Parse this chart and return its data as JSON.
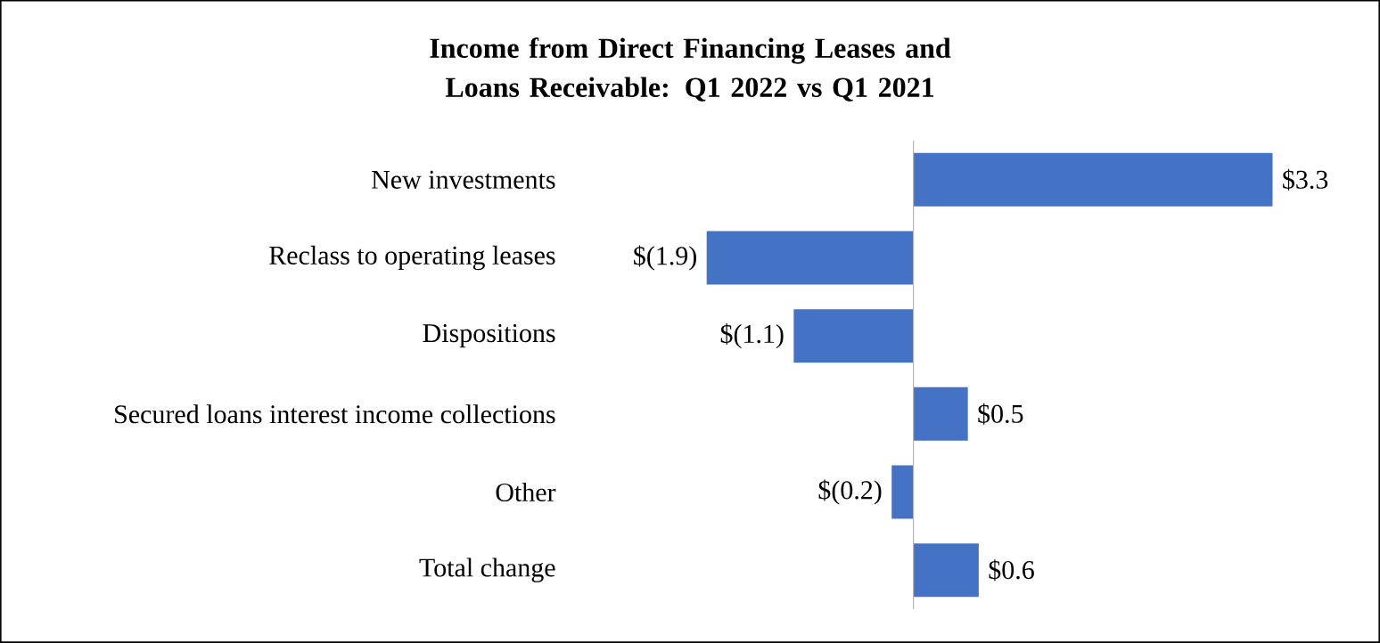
{
  "chart_data": {
    "type": "bar",
    "orientation": "horizontal",
    "title": "Income from Direct Financing Leases and Loans Receivable: Q1 2022 vs Q1 2021",
    "categories": [
      "New investments",
      "Reclass to operating leases",
      "Dispositions",
      "Secured loans interest income collections",
      "Other",
      "Total change"
    ],
    "values": [
      3.3,
      -1.9,
      -1.1,
      0.5,
      -0.2,
      0.6
    ],
    "value_labels": [
      "$3.3",
      "$(1.9)",
      "$(1.1)",
      "$0.5",
      "$(0.2)",
      "$0.6"
    ],
    "color": "#4472c4"
  }
}
